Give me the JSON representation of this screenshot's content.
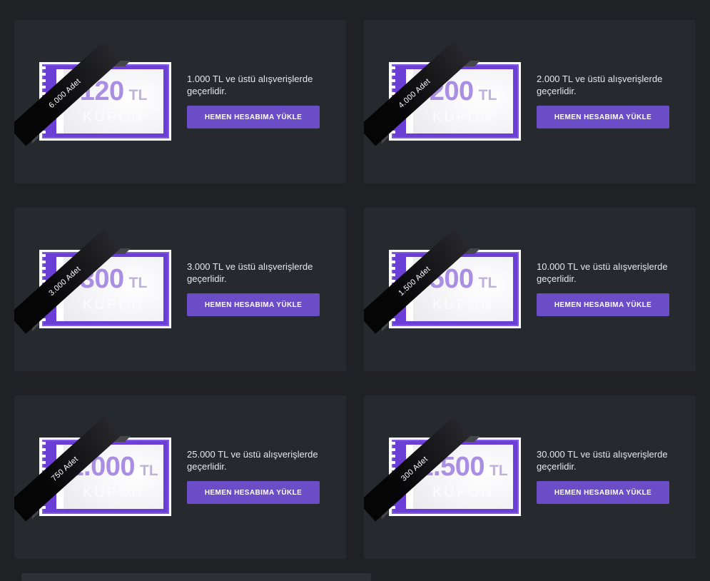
{
  "page": {
    "background_color": "#1f2125",
    "card_color": "#26292e",
    "coupon_purple": "#6b3fd6",
    "button_purple": "#6a4dc7",
    "amount_text_purple": "#a98ee3"
  },
  "coupons": [
    {
      "value": "120",
      "currency": "TL",
      "label": "KUPON",
      "ribbon": "6.000 Adet",
      "description": "1.000 TL ve üstü alışverişlerde geçerlidir.",
      "button": "HEMEN HESABIMA YÜKLE"
    },
    {
      "value": "200",
      "currency": "TL",
      "label": "KUPON",
      "ribbon": "4.000 Adet",
      "description": "2.000 TL ve üstü alışverişlerde geçerlidir.",
      "button": "HEMEN HESABIMA YÜKLE"
    },
    {
      "value": "300",
      "currency": "TL",
      "label": "KUPON",
      "ribbon": "3.000 Adet",
      "description": "3.000 TL ve üstü alışverişlerde geçerlidir.",
      "button": "HEMEN HESABIMA YÜKLE"
    },
    {
      "value": "500",
      "currency": "TL",
      "label": "KUPON",
      "ribbon": "1.500 Adet",
      "description": "10.000 TL ve üstü alışverişlerde geçerlidir.",
      "button": "HEMEN HESABIMA YÜKLE"
    },
    {
      "value": "1.000",
      "currency": "TL",
      "label": "KUPON",
      "ribbon": "750 Adet",
      "description": "25.000 TL ve üstü alışverişlerde geçerlidir.",
      "button": "HEMEN HESABIMA YÜKLE"
    },
    {
      "value": "1.500",
      "currency": "TL",
      "label": "KUPON",
      "ribbon": "300 Adet",
      "description": "30.000 TL ve üstü alışverişlerde geçerlidir.",
      "button": "HEMEN HESABIMA YÜKLE"
    }
  ]
}
